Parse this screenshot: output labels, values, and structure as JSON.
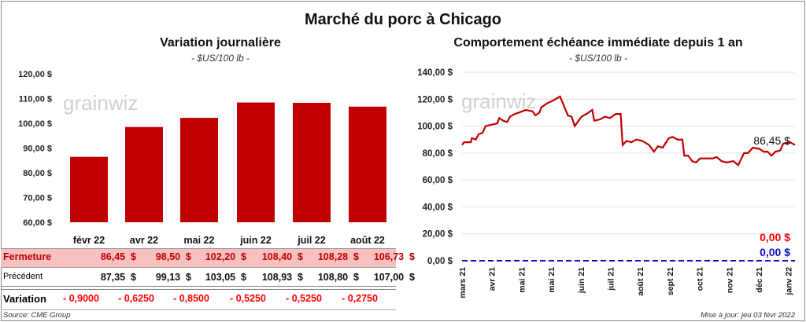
{
  "title": "Marché du porc à Chicago",
  "left": {
    "title": "Variation journalière",
    "subtitle": "- $US/100 lb -"
  },
  "right": {
    "title": "Comportement  échéance immédiate depuis 1 an",
    "subtitle": "- $US/100 lb -"
  },
  "watermark": "grainwiz",
  "table": {
    "row_labels": {
      "close": "Fermeture",
      "prev": "Précédent",
      "change": "Variation"
    },
    "close": [
      "86,45  $",
      "98,50  $",
      "102,20  $",
      "108,40  $",
      "108,28  $",
      "106,73  $"
    ],
    "prev": [
      "87,35  $",
      "99,13  $",
      "103,05  $",
      "108,93  $",
      "108,80  $",
      "107,00  $"
    ],
    "change": [
      "- 0,9000",
      "- 0,6250",
      "- 0,8500",
      "- 0,5250",
      "- 0,5250",
      "- 0,2750"
    ]
  },
  "source": "Source: CME Group",
  "updated": "Mise à jour: jeu 03 févr 2022",
  "colors": {
    "bar": "#c00000",
    "line": "#c00000",
    "zero": "#1010c0",
    "highlight": "#f8c0c0"
  },
  "chart_data": [
    {
      "type": "bar",
      "title": "Variation journalière",
      "categories": [
        "févr 22",
        "avr 22",
        "mai 22",
        "juin 22",
        "juil 22",
        "août 22"
      ],
      "values": [
        86.45,
        98.5,
        102.2,
        108.4,
        108.28,
        106.73
      ],
      "ylim": [
        60,
        120
      ],
      "yticks": [
        60,
        70,
        80,
        90,
        100,
        110,
        120
      ],
      "ytick_labels": [
        "60,00 $",
        "70,00 $",
        "80,00 $",
        "90,00 $",
        "100,00 $",
        "110,00 $",
        "120,00 $"
      ]
    },
    {
      "type": "line",
      "title": "Comportement  échéance immédiate depuis 1 an",
      "ylim": [
        0,
        140
      ],
      "xlim": [
        0,
        340
      ],
      "yticks": [
        0,
        20,
        40,
        60,
        80,
        100,
        120,
        140
      ],
      "ytick_labels": [
        "0,00 $",
        "20,00 $",
        "40,00 $",
        "60,00 $",
        "80,00 $",
        "100,00 $",
        "120,00 $",
        "140,00 $"
      ],
      "xtick_labels": [
        "mars 21",
        "avr 21",
        "mai 21",
        "mai 21",
        "juin 21",
        "juil 21",
        "août 21",
        "sept 21",
        "oct 21",
        "nov 21",
        "déc 21",
        "janv 22"
      ],
      "points": [
        [
          0,
          86
        ],
        [
          2,
          88
        ],
        [
          9,
          88
        ],
        [
          10,
          91
        ],
        [
          14,
          90
        ],
        [
          17,
          94
        ],
        [
          21,
          95
        ],
        [
          24,
          100
        ],
        [
          30,
          101
        ],
        [
          36,
          102
        ],
        [
          38,
          106
        ],
        [
          42,
          104
        ],
        [
          46,
          103
        ],
        [
          49,
          107
        ],
        [
          54,
          109
        ],
        [
          58,
          110
        ],
        [
          65,
          112
        ],
        [
          72,
          111
        ],
        [
          75,
          108
        ],
        [
          79,
          110
        ],
        [
          81,
          114
        ],
        [
          87,
          117
        ],
        [
          93,
          119
        ],
        [
          100,
          122
        ],
        [
          103,
          117
        ],
        [
          108,
          108
        ],
        [
          112,
          107
        ],
        [
          115,
          100
        ],
        [
          122,
          107
        ],
        [
          127,
          109
        ],
        [
          133,
          112
        ],
        [
          135,
          104
        ],
        [
          141,
          105
        ],
        [
          146,
          107
        ],
        [
          151,
          106
        ],
        [
          157,
          109
        ],
        [
          162,
          109
        ],
        [
          164,
          86
        ],
        [
          168,
          89
        ],
        [
          173,
          88
        ],
        [
          178,
          90
        ],
        [
          184,
          89
        ],
        [
          191,
          86
        ],
        [
          196,
          81
        ],
        [
          200,
          85
        ],
        [
          205,
          84
        ],
        [
          211,
          91
        ],
        [
          215,
          92
        ],
        [
          220,
          90
        ],
        [
          225,
          90
        ],
        [
          227,
          78
        ],
        [
          231,
          78
        ],
        [
          235,
          74
        ],
        [
          239,
          73
        ],
        [
          243,
          76
        ],
        [
          248,
          76
        ],
        [
          256,
          76
        ],
        [
          260,
          77
        ],
        [
          265,
          74
        ],
        [
          270,
          73
        ],
        [
          277,
          74
        ],
        [
          282,
          71
        ],
        [
          288,
          80
        ],
        [
          292,
          80
        ],
        [
          297,
          84
        ],
        [
          304,
          83
        ],
        [
          308,
          81
        ],
        [
          312,
          81
        ],
        [
          316,
          78
        ],
        [
          320,
          81
        ],
        [
          325,
          82
        ],
        [
          328,
          87
        ],
        [
          335,
          88
        ],
        [
          340,
          86
        ]
      ],
      "annotations": {
        "last": "86,45 $",
        "zero_blue": "0,00 $",
        "zero_red": "0,00 $"
      },
      "zero_line": 0
    }
  ]
}
